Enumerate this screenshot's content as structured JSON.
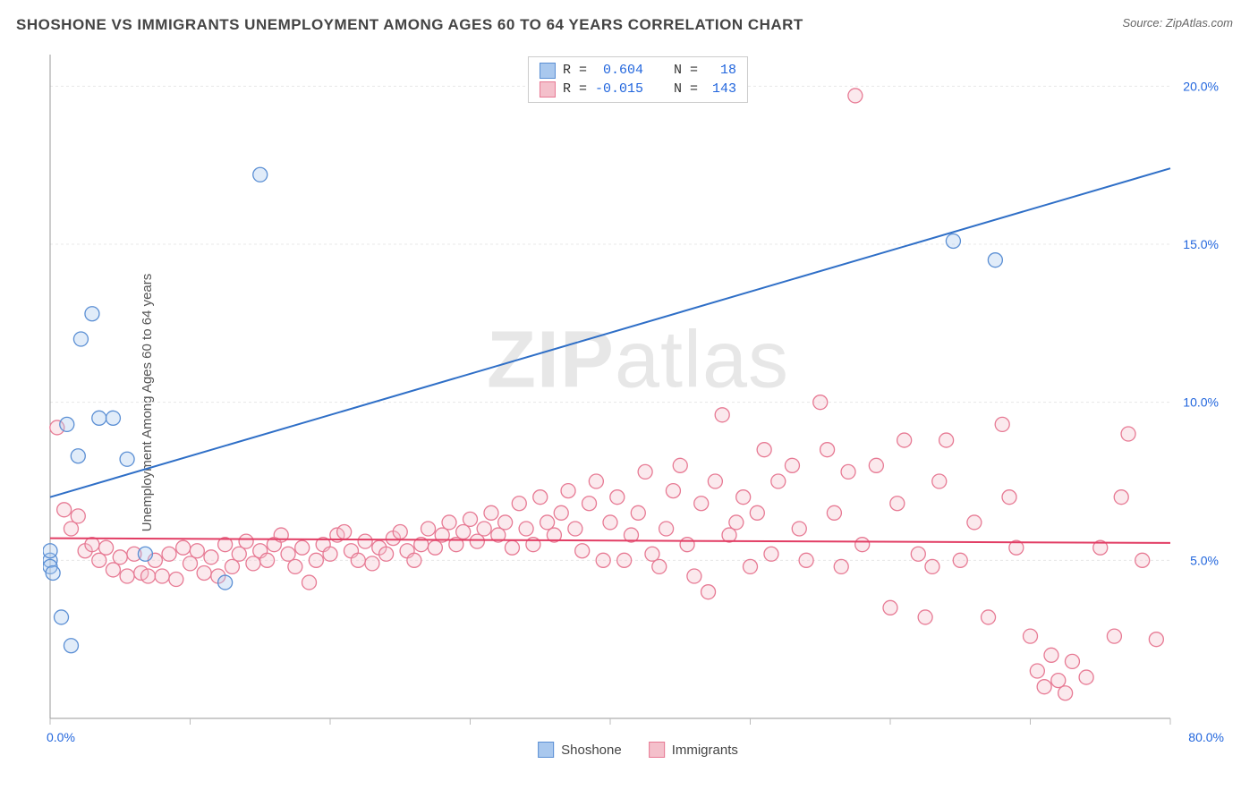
{
  "title": "SHOSHONE VS IMMIGRANTS UNEMPLOYMENT AMONG AGES 60 TO 64 YEARS CORRELATION CHART",
  "source": "Source: ZipAtlas.com",
  "ylabel": "Unemployment Among Ages 60 to 64 years",
  "watermark_bold": "ZIP",
  "watermark_rest": "atlas",
  "chart": {
    "type": "scatter",
    "background_color": "#ffffff",
    "grid_color": "#e8e8e8",
    "axis_color": "#999999",
    "tick_color": "#bbbbbb",
    "xlim": [
      0,
      80
    ],
    "ylim": [
      0,
      21
    ],
    "x_ticks_labeled": [
      {
        "v": 0,
        "label": "0.0%"
      },
      {
        "v": 80,
        "label": "80.0%"
      }
    ],
    "x_ticks_minor": [
      10,
      20,
      30,
      40,
      50,
      60,
      70
    ],
    "y_ticks_labeled": [
      {
        "v": 5,
        "label": "5.0%"
      },
      {
        "v": 10,
        "label": "10.0%"
      },
      {
        "v": 15,
        "label": "15.0%"
      },
      {
        "v": 20,
        "label": "20.0%"
      }
    ],
    "marker_radius": 8,
    "marker_fill_opacity": 0.35,
    "marker_stroke_width": 1.3,
    "line_width": 2,
    "series": [
      {
        "name": "Shoshone",
        "color_fill": "#a9c8ee",
        "color_stroke": "#5b8fd4",
        "line_color": "#2f6fc7",
        "R": "0.604",
        "N": "18",
        "trend": {
          "x1": 0,
          "y1": 7.0,
          "x2": 80,
          "y2": 17.4
        },
        "points": [
          [
            0.0,
            5.0
          ],
          [
            0.0,
            5.3
          ],
          [
            0.0,
            4.8
          ],
          [
            0.2,
            4.6
          ],
          [
            0.8,
            3.2
          ],
          [
            1.5,
            2.3
          ],
          [
            1.2,
            9.3
          ],
          [
            2.0,
            8.3
          ],
          [
            2.2,
            12.0
          ],
          [
            3.0,
            12.8
          ],
          [
            3.5,
            9.5
          ],
          [
            4.5,
            9.5
          ],
          [
            5.5,
            8.2
          ],
          [
            6.8,
            5.2
          ],
          [
            12.5,
            4.3
          ],
          [
            15.0,
            17.2
          ],
          [
            64.5,
            15.1
          ],
          [
            67.5,
            14.5
          ]
        ]
      },
      {
        "name": "Immigrants",
        "color_fill": "#f4c0cb",
        "color_stroke": "#e77a94",
        "line_color": "#e23d64",
        "R": "-0.015",
        "N": "143",
        "trend": {
          "x1": 0,
          "y1": 5.7,
          "x2": 80,
          "y2": 5.55
        },
        "points": [
          [
            0.5,
            9.2
          ],
          [
            1.0,
            6.6
          ],
          [
            1.5,
            6.0
          ],
          [
            2.0,
            6.4
          ],
          [
            2.5,
            5.3
          ],
          [
            3.0,
            5.5
          ],
          [
            3.5,
            5.0
          ],
          [
            4.0,
            5.4
          ],
          [
            4.5,
            4.7
          ],
          [
            5.0,
            5.1
          ],
          [
            5.5,
            4.5
          ],
          [
            6.0,
            5.2
          ],
          [
            6.5,
            4.6
          ],
          [
            7.0,
            4.5
          ],
          [
            7.5,
            5.0
          ],
          [
            8.0,
            4.5
          ],
          [
            8.5,
            5.2
          ],
          [
            9.0,
            4.4
          ],
          [
            9.5,
            5.4
          ],
          [
            10.0,
            4.9
          ],
          [
            10.5,
            5.3
          ],
          [
            11.0,
            4.6
          ],
          [
            11.5,
            5.1
          ],
          [
            12.0,
            4.5
          ],
          [
            12.5,
            5.5
          ],
          [
            13.0,
            4.8
          ],
          [
            13.5,
            5.2
          ],
          [
            14.0,
            5.6
          ],
          [
            14.5,
            4.9
          ],
          [
            15.0,
            5.3
          ],
          [
            15.5,
            5.0
          ],
          [
            16.0,
            5.5
          ],
          [
            16.5,
            5.8
          ],
          [
            17.0,
            5.2
          ],
          [
            17.5,
            4.8
          ],
          [
            18.0,
            5.4
          ],
          [
            18.5,
            4.3
          ],
          [
            19.0,
            5.0
          ],
          [
            19.5,
            5.5
          ],
          [
            20.0,
            5.2
          ],
          [
            20.5,
            5.8
          ],
          [
            21.0,
            5.9
          ],
          [
            21.5,
            5.3
          ],
          [
            22.0,
            5.0
          ],
          [
            22.5,
            5.6
          ],
          [
            23.0,
            4.9
          ],
          [
            23.5,
            5.4
          ],
          [
            24.0,
            5.2
          ],
          [
            24.5,
            5.7
          ],
          [
            25.0,
            5.9
          ],
          [
            25.5,
            5.3
          ],
          [
            26.0,
            5.0
          ],
          [
            26.5,
            5.5
          ],
          [
            27.0,
            6.0
          ],
          [
            27.5,
            5.4
          ],
          [
            28.0,
            5.8
          ],
          [
            28.5,
            6.2
          ],
          [
            29.0,
            5.5
          ],
          [
            29.5,
            5.9
          ],
          [
            30.0,
            6.3
          ],
          [
            30.5,
            5.6
          ],
          [
            31.0,
            6.0
          ],
          [
            31.5,
            6.5
          ],
          [
            32.0,
            5.8
          ],
          [
            32.5,
            6.2
          ],
          [
            33.0,
            5.4
          ],
          [
            33.5,
            6.8
          ],
          [
            34.0,
            6.0
          ],
          [
            34.5,
            5.5
          ],
          [
            35.0,
            7.0
          ],
          [
            35.5,
            6.2
          ],
          [
            36.0,
            5.8
          ],
          [
            36.5,
            6.5
          ],
          [
            37.0,
            7.2
          ],
          [
            37.5,
            6.0
          ],
          [
            38.0,
            5.3
          ],
          [
            38.5,
            6.8
          ],
          [
            39.0,
            7.5
          ],
          [
            39.5,
            5.0
          ],
          [
            40.0,
            6.2
          ],
          [
            40.5,
            7.0
          ],
          [
            41.0,
            5.0
          ],
          [
            41.5,
            5.8
          ],
          [
            42.0,
            6.5
          ],
          [
            42.5,
            7.8
          ],
          [
            43.0,
            5.2
          ],
          [
            43.5,
            4.8
          ],
          [
            44.0,
            6.0
          ],
          [
            44.5,
            7.2
          ],
          [
            45.0,
            8.0
          ],
          [
            45.5,
            5.5
          ],
          [
            46.0,
            4.5
          ],
          [
            46.5,
            6.8
          ],
          [
            47.0,
            4.0
          ],
          [
            47.5,
            7.5
          ],
          [
            48.0,
            9.6
          ],
          [
            48.5,
            5.8
          ],
          [
            49.0,
            6.2
          ],
          [
            49.5,
            7.0
          ],
          [
            50.0,
            4.8
          ],
          [
            50.5,
            6.5
          ],
          [
            51.0,
            8.5
          ],
          [
            51.5,
            5.2
          ],
          [
            52.0,
            7.5
          ],
          [
            53.0,
            8.0
          ],
          [
            53.5,
            6.0
          ],
          [
            54.0,
            5.0
          ],
          [
            55.0,
            10.0
          ],
          [
            55.5,
            8.5
          ],
          [
            56.0,
            6.5
          ],
          [
            56.5,
            4.8
          ],
          [
            57.0,
            7.8
          ],
          [
            57.5,
            19.7
          ],
          [
            58.0,
            5.5
          ],
          [
            59.0,
            8.0
          ],
          [
            60.0,
            3.5
          ],
          [
            60.5,
            6.8
          ],
          [
            61.0,
            8.8
          ],
          [
            62.0,
            5.2
          ],
          [
            62.5,
            3.2
          ],
          [
            63.0,
            4.8
          ],
          [
            63.5,
            7.5
          ],
          [
            64.0,
            8.8
          ],
          [
            65.0,
            5.0
          ],
          [
            66.0,
            6.2
          ],
          [
            67.0,
            3.2
          ],
          [
            68.0,
            9.3
          ],
          [
            68.5,
            7.0
          ],
          [
            69.0,
            5.4
          ],
          [
            70.0,
            2.6
          ],
          [
            70.5,
            1.5
          ],
          [
            71.0,
            1.0
          ],
          [
            71.5,
            2.0
          ],
          [
            72.0,
            1.2
          ],
          [
            72.5,
            0.8
          ],
          [
            73.0,
            1.8
          ],
          [
            74.0,
            1.3
          ],
          [
            75.0,
            5.4
          ],
          [
            76.0,
            2.6
          ],
          [
            76.5,
            7.0
          ],
          [
            77.0,
            9.0
          ],
          [
            78.0,
            5.0
          ],
          [
            79.0,
            2.5
          ]
        ]
      }
    ]
  },
  "bottom_legend": [
    {
      "label": "Shoshone",
      "fill": "#a9c8ee",
      "stroke": "#5b8fd4"
    },
    {
      "label": "Immigrants",
      "fill": "#f4c0cb",
      "stroke": "#e77a94"
    }
  ]
}
